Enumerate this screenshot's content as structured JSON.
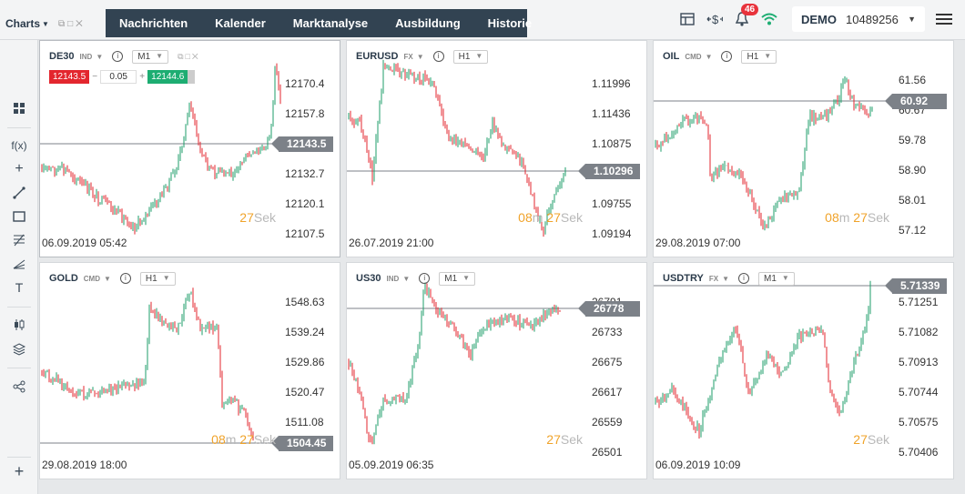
{
  "topbar": {
    "charts_label": "Charts",
    "nav": [
      "Nachrichten",
      "Kalender",
      "Marktanalyse",
      "Ausbildung",
      "Historie"
    ],
    "notifications": "46",
    "account": {
      "mode": "DEMO",
      "number": "10489256"
    }
  },
  "colors": {
    "up": "#1e9e6a",
    "down": "#e3262e",
    "accent": "#f0a32a",
    "nav_bg": "#324352"
  },
  "panels": [
    {
      "symbol": "DE30",
      "category": "IND",
      "timeframe": "M1",
      "prices": [
        "12170.4",
        "12157.8",
        "12132.7",
        "12120.1",
        "12107.5"
      ],
      "current": "12143.5",
      "timestamp": "06.09.2019 05:42",
      "countdown": {
        "min": "",
        "sec": "27"
      },
      "trade": {
        "sell": "12143.5",
        "qty": "0.05",
        "buy": "12144.6"
      }
    },
    {
      "symbol": "EURUSD",
      "category": "FX",
      "timeframe": "H1",
      "prices": [
        "1.11996",
        "1.11436",
        "1.10875",
        "1.09755",
        "1.09194"
      ],
      "current": "1.10296",
      "timestamp": "26.07.2019 21:00",
      "countdown": {
        "min": "08",
        "sec": "27"
      }
    },
    {
      "symbol": "OIL",
      "category": "CMD",
      "timeframe": "H1",
      "prices": [
        "61.56",
        "60.67",
        "59.78",
        "58.90",
        "58.01",
        "57.12"
      ],
      "current": "60.92",
      "timestamp": "29.08.2019 07:00",
      "countdown": {
        "min": "08",
        "sec": "27"
      }
    },
    {
      "symbol": "GOLD",
      "category": "CMD",
      "timeframe": "H1",
      "prices": [
        "1548.63",
        "1539.24",
        "1529.86",
        "1520.47",
        "1511.08"
      ],
      "current": "1504.45",
      "timestamp": "29.08.2019 18:00",
      "countdown": {
        "min": "08",
        "sec": "27"
      }
    },
    {
      "symbol": "US30",
      "category": "IND",
      "timeframe": "M1",
      "prices": [
        "26791",
        "26733",
        "26675",
        "26617",
        "26559",
        "26501"
      ],
      "current": "26778",
      "timestamp": "05.09.2019 06:35",
      "countdown": {
        "min": "",
        "sec": "27"
      }
    },
    {
      "symbol": "USDTRY",
      "category": "FX",
      "timeframe": "M1",
      "prices": [
        "5.71251",
        "5.71082",
        "5.70913",
        "5.70744",
        "5.70575",
        "5.70406"
      ],
      "current": "5.71339",
      "timestamp": "06.09.2019 10:09",
      "countdown": {
        "min": "",
        "sec": "27"
      }
    }
  ],
  "labels": {
    "min_unit": "m",
    "sec_unit": "Sek"
  }
}
